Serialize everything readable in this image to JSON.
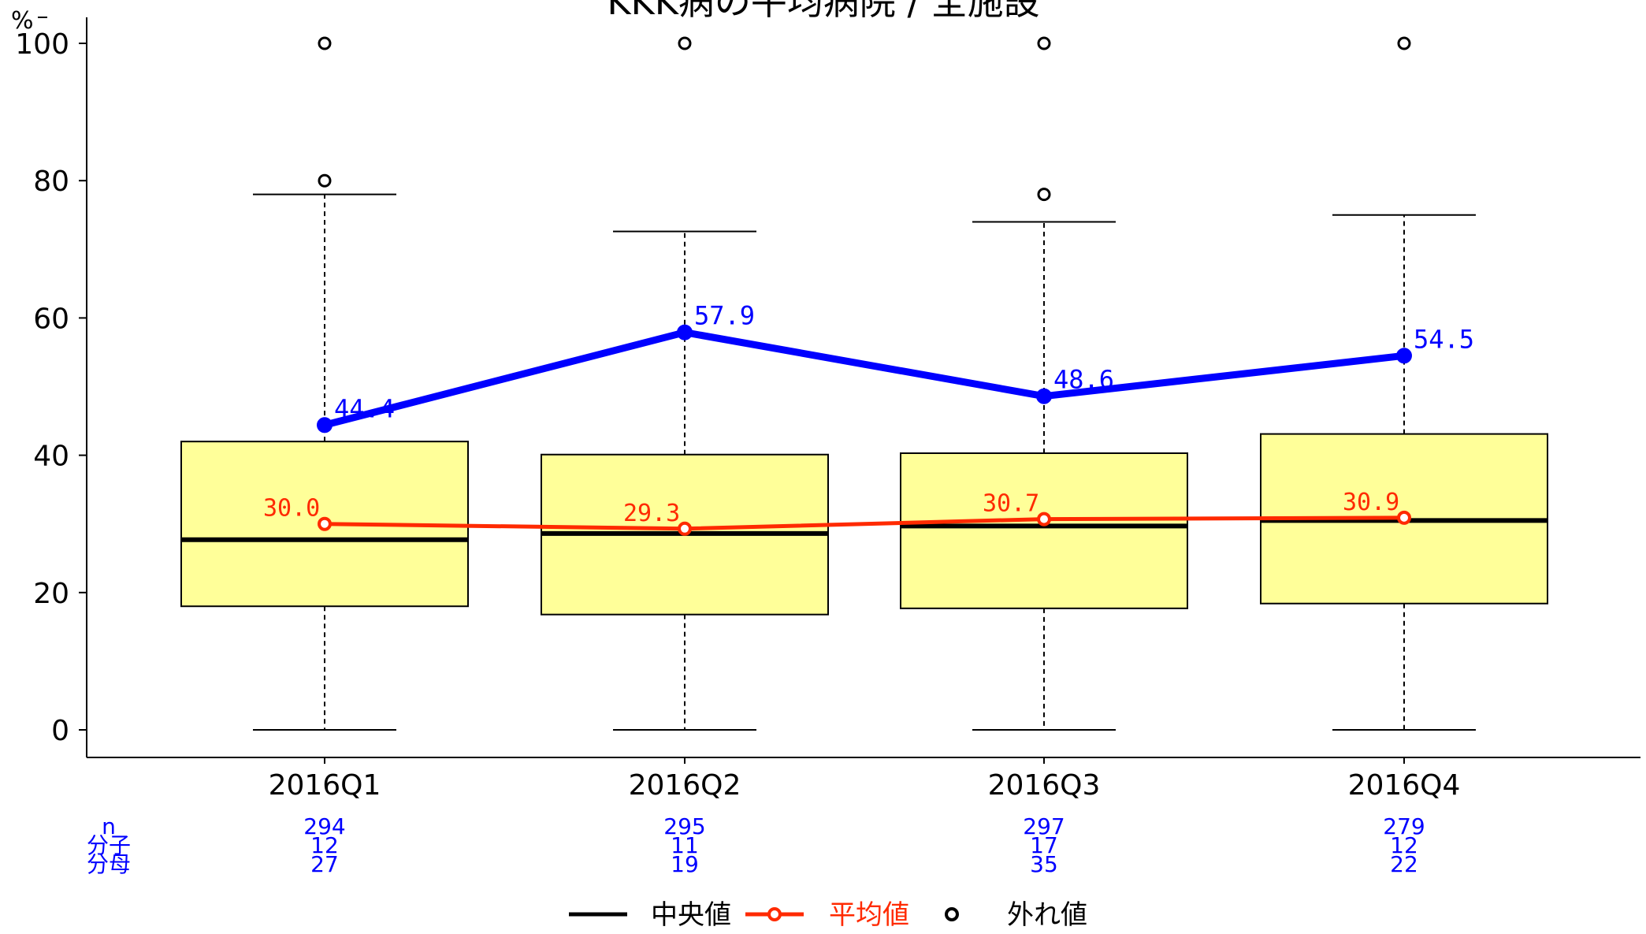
{
  "chart_data": {
    "type": "box",
    "title": "KKK病の平均病院 / 全施設",
    "ylabel": "%",
    "ylim": [
      0,
      100
    ],
    "yticks": [
      0,
      20,
      40,
      60,
      80,
      100
    ],
    "categories": [
      "2016Q1",
      "2016Q2",
      "2016Q3",
      "2016Q4"
    ],
    "boxes": [
      {
        "whisker_low": 0,
        "q1": 18,
        "median": 27.7,
        "q3": 42.0,
        "whisker_high": 78,
        "outliers": [
          80,
          100
        ]
      },
      {
        "whisker_low": 0,
        "q1": 16.8,
        "median": 28.6,
        "q3": 40.1,
        "whisker_high": 72.6,
        "outliers": [
          100
        ]
      },
      {
        "whisker_low": 0,
        "q1": 17.7,
        "median": 29.7,
        "q3": 40.3,
        "whisker_high": 74,
        "outliers": [
          78,
          100
        ]
      },
      {
        "whisker_low": 0,
        "q1": 18.4,
        "median": 30.5,
        "q3": 43.1,
        "whisker_high": 75,
        "outliers": [
          100
        ]
      }
    ],
    "series": [
      {
        "values": [
          44.4,
          57.9,
          48.6,
          54.5
        ],
        "labels": [
          "44.4",
          "57.9",
          "48.6",
          "54.5"
        ],
        "color": "#0000ff"
      },
      {
        "name": "平均値",
        "values": [
          30.0,
          29.3,
          30.7,
          30.9
        ],
        "labels": [
          "30.0",
          "29.3",
          "30.7",
          "30.9"
        ],
        "color": "#ff2a00"
      }
    ],
    "count_table": {
      "row_labels": [
        "n",
        "分子",
        "分母"
      ],
      "columns": [
        [
          "294",
          "12",
          "27"
        ],
        [
          "295",
          "11",
          "19"
        ],
        [
          "297",
          "17",
          "35"
        ],
        [
          "279",
          "12",
          "22"
        ]
      ],
      "color": "#0000ff"
    },
    "legend": {
      "position": "bottom",
      "items": [
        {
          "label": "中央値",
          "color": "#000000"
        },
        {
          "label": "平均値",
          "color": "#ff2a00"
        },
        {
          "label": "外れ値",
          "color": "#000000"
        }
      ]
    },
    "colors": {
      "box_fill": "#ffff99",
      "axis": "#000000"
    },
    "grid": false
  }
}
